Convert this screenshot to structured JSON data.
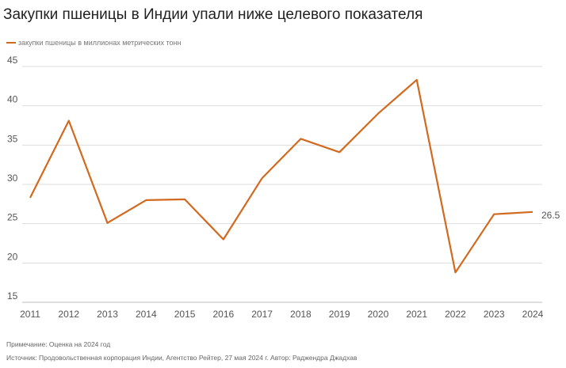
{
  "chart_data": {
    "type": "line",
    "title": "Закупки пшеницы в Индии упали ниже целевого показателя",
    "categories": [
      "2011",
      "2012",
      "2013",
      "2014",
      "2015",
      "2016",
      "2017",
      "2018",
      "2019",
      "2020",
      "2021",
      "2022",
      "2023",
      "2024"
    ],
    "series": [
      {
        "name": "закупки пшеницы в миллионах метрических тонн",
        "values": [
          28.3,
          38.1,
          25.1,
          28.0,
          28.1,
          23.0,
          30.8,
          35.8,
          34.1,
          39.0,
          43.3,
          18.8,
          26.2,
          26.5
        ],
        "color": "#d2691e"
      }
    ],
    "y_ticks": [
      "15",
      "20",
      "25",
      "30",
      "35",
      "40",
      "45"
    ],
    "ylim": [
      15,
      45
    ],
    "grid": true,
    "legend_position": "top-left",
    "end_label": "26.5"
  },
  "footer": {
    "note": "Примечание: Оценка на 2024 год",
    "source": "Источник: Продовольственная корпорация Индии, Агентство Рейтер, 27 мая 2024 г. Автор: Раджендра Джадхав"
  }
}
